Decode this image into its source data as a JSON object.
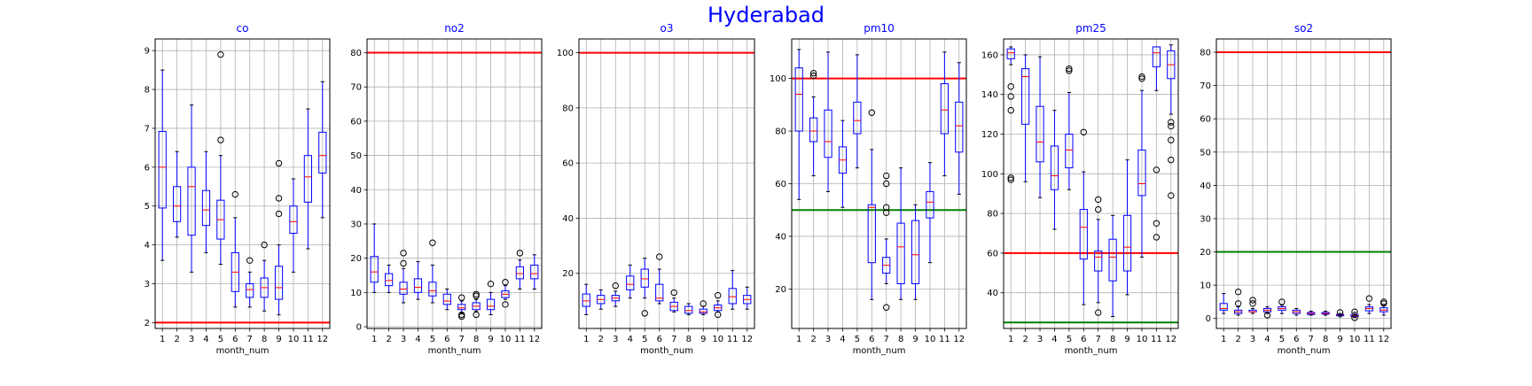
{
  "title": "Hyderabad",
  "title_color": "#0000ff",
  "colors": {
    "box": "#0000ff",
    "whisker": "#0000ff",
    "median": "#ff0000",
    "flier": "#000000",
    "grid": "#b0b0b0",
    "line_red": "#ff0000",
    "line_green": "#008000",
    "subtitle": "#0000ff"
  },
  "chart_data": [
    {
      "type": "box",
      "title": "co",
      "xlabel": "month_num",
      "ylabel": "",
      "grid": true,
      "categories": [
        "1",
        "2",
        "3",
        "4",
        "5",
        "6",
        "7",
        "8",
        "9",
        "10",
        "11",
        "12"
      ],
      "ylim": [
        1.85,
        9.3
      ],
      "yticks": [
        2,
        3,
        4,
        5,
        6,
        7,
        8,
        9
      ],
      "hlines": [
        {
          "y": 2.0,
          "color": "red"
        }
      ],
      "boxes": [
        {
          "month": "1",
          "whislo": 3.6,
          "q1": 4.95,
          "med": 6.0,
          "q3": 6.92,
          "whishi": 8.5,
          "fliers": []
        },
        {
          "month": "2",
          "whislo": 4.2,
          "q1": 4.6,
          "med": 5.0,
          "q3": 5.5,
          "whishi": 6.4,
          "fliers": []
        },
        {
          "month": "3",
          "whislo": 3.3,
          "q1": 4.25,
          "med": 5.5,
          "q3": 6.0,
          "whishi": 7.6,
          "fliers": []
        },
        {
          "month": "4",
          "whislo": 3.8,
          "q1": 4.5,
          "med": 4.9,
          "q3": 5.4,
          "whishi": 6.4,
          "fliers": []
        },
        {
          "month": "5",
          "whislo": 3.5,
          "q1": 4.15,
          "med": 4.65,
          "q3": 5.15,
          "whishi": 6.3,
          "fliers": [
            6.7,
            8.9
          ]
        },
        {
          "month": "6",
          "whislo": 2.4,
          "q1": 2.8,
          "med": 3.3,
          "q3": 3.8,
          "whishi": 4.7,
          "fliers": [
            5.3
          ]
        },
        {
          "month": "7",
          "whislo": 2.4,
          "q1": 2.65,
          "med": 2.85,
          "q3": 3.0,
          "whishi": 3.3,
          "fliers": [
            3.6
          ]
        },
        {
          "month": "8",
          "whislo": 2.3,
          "q1": 2.65,
          "med": 2.9,
          "q3": 3.15,
          "whishi": 3.6,
          "fliers": [
            4.0
          ]
        },
        {
          "month": "9",
          "whislo": 2.2,
          "q1": 2.6,
          "med": 2.9,
          "q3": 3.45,
          "whishi": 4.0,
          "fliers": [
            4.8,
            5.2,
            6.1
          ]
        },
        {
          "month": "10",
          "whislo": 3.3,
          "q1": 4.3,
          "med": 4.6,
          "q3": 5.0,
          "whishi": 5.7,
          "fliers": []
        },
        {
          "month": "11",
          "whislo": 3.9,
          "q1": 5.1,
          "med": 5.75,
          "q3": 6.3,
          "whishi": 7.5,
          "fliers": []
        },
        {
          "month": "12",
          "whislo": 4.7,
          "q1": 5.85,
          "med": 6.3,
          "q3": 6.9,
          "whishi": 8.2,
          "fliers": []
        }
      ]
    },
    {
      "type": "box",
      "title": "no2",
      "xlabel": "month_num",
      "ylabel": "",
      "grid": true,
      "categories": [
        "1",
        "2",
        "3",
        "4",
        "5",
        "6",
        "7",
        "8",
        "9",
        "10",
        "11",
        "12"
      ],
      "ylim": [
        -0.5,
        84
      ],
      "yticks": [
        0,
        10,
        20,
        30,
        40,
        50,
        60,
        70,
        80
      ],
      "hlines": [
        {
          "y": 80,
          "color": "red"
        }
      ],
      "boxes": [
        {
          "month": "1",
          "whislo": 10,
          "q1": 13,
          "med": 16,
          "q3": 20.5,
          "whishi": 30,
          "fliers": []
        },
        {
          "month": "2",
          "whislo": 10,
          "q1": 12,
          "med": 13.5,
          "q3": 15.5,
          "whishi": 18,
          "fliers": []
        },
        {
          "month": "3",
          "whislo": 7,
          "q1": 9.5,
          "med": 11,
          "q3": 13,
          "whishi": 17,
          "fliers": [
            18.5,
            21.5
          ]
        },
        {
          "month": "4",
          "whislo": 8,
          "q1": 10,
          "med": 11.5,
          "q3": 14,
          "whishi": 19,
          "fliers": []
        },
        {
          "month": "5",
          "whislo": 7,
          "q1": 9,
          "med": 10.5,
          "q3": 13,
          "whishi": 18,
          "fliers": [
            24.5
          ]
        },
        {
          "month": "6",
          "whislo": 5,
          "q1": 6.5,
          "med": 7.5,
          "q3": 9.5,
          "whishi": 11,
          "fliers": []
        },
        {
          "month": "7",
          "whislo": 4,
          "q1": 5,
          "med": 5.5,
          "q3": 6.5,
          "whishi": 7.5,
          "fliers": [
            3,
            3.5,
            8.5
          ]
        },
        {
          "month": "8",
          "whislo": 4.5,
          "q1": 5,
          "med": 6,
          "q3": 7,
          "whishi": 8,
          "fliers": [
            3.5,
            9,
            9.5
          ]
        },
        {
          "month": "9",
          "whislo": 3.5,
          "q1": 5,
          "med": 6,
          "q3": 8,
          "whishi": 10,
          "fliers": [
            12.5
          ]
        },
        {
          "month": "10",
          "whislo": 8,
          "q1": 8.5,
          "med": 9.5,
          "q3": 10.5,
          "whishi": 12,
          "fliers": [
            6.5,
            13
          ]
        },
        {
          "month": "11",
          "whislo": 11,
          "q1": 14,
          "med": 15.5,
          "q3": 17.5,
          "whishi": 19.5,
          "fliers": [
            21.5
          ]
        },
        {
          "month": "12",
          "whislo": 11,
          "q1": 14,
          "med": 15.5,
          "q3": 18,
          "whishi": 21,
          "fliers": []
        }
      ]
    },
    {
      "type": "box",
      "title": "o3",
      "xlabel": "month_num",
      "ylabel": "",
      "grid": true,
      "categories": [
        "1",
        "2",
        "3",
        "4",
        "5",
        "6",
        "7",
        "8",
        "9",
        "10",
        "11",
        "12"
      ],
      "ylim": [
        0,
        105
      ],
      "yticks": [
        20,
        40,
        60,
        80,
        100
      ],
      "hlines": [
        {
          "y": 100,
          "color": "red"
        }
      ],
      "boxes": [
        {
          "month": "1",
          "whislo": 5,
          "q1": 8,
          "med": 10,
          "q3": 12.5,
          "whishi": 16,
          "fliers": []
        },
        {
          "month": "2",
          "whislo": 7,
          "q1": 9,
          "med": 10.5,
          "q3": 12,
          "whishi": 14,
          "fliers": []
        },
        {
          "month": "3",
          "whislo": 8,
          "q1": 10,
          "med": 11,
          "q3": 12,
          "whishi": 13.5,
          "fliers": [
            15.5
          ]
        },
        {
          "month": "4",
          "whislo": 11,
          "q1": 14,
          "med": 16,
          "q3": 19,
          "whishi": 23,
          "fliers": []
        },
        {
          "month": "5",
          "whislo": 11,
          "q1": 15,
          "med": 18,
          "q3": 21.5,
          "whishi": 25.5,
          "fliers": [
            5.5
          ]
        },
        {
          "month": "6",
          "whislo": 9,
          "q1": 10,
          "med": 11,
          "q3": 16,
          "whishi": 21.5,
          "fliers": [
            26
          ]
        },
        {
          "month": "7",
          "whislo": 6,
          "q1": 6.5,
          "med": 8,
          "q3": 9.5,
          "whishi": 11,
          "fliers": [
            13
          ]
        },
        {
          "month": "8",
          "whislo": 5,
          "q1": 5.5,
          "med": 6.5,
          "q3": 8,
          "whishi": 9,
          "fliers": []
        },
        {
          "month": "9",
          "whislo": 5,
          "q1": 5.5,
          "med": 6,
          "q3": 7,
          "whishi": 8,
          "fliers": [
            9
          ]
        },
        {
          "month": "10",
          "whislo": 6,
          "q1": 6.5,
          "med": 7.5,
          "q3": 8.5,
          "whishi": 10,
          "fliers": [
            5,
            12
          ]
        },
        {
          "month": "11",
          "whislo": 7,
          "q1": 9,
          "med": 11.5,
          "q3": 14.5,
          "whishi": 21,
          "fliers": []
        },
        {
          "month": "12",
          "whislo": 7,
          "q1": 9,
          "med": 10.5,
          "q3": 12,
          "whishi": 15,
          "fliers": []
        }
      ]
    },
    {
      "type": "box",
      "title": "pm10",
      "xlabel": "month_num",
      "ylabel": "",
      "grid": true,
      "categories": [
        "1",
        "2",
        "3",
        "4",
        "5",
        "6",
        "7",
        "8",
        "9",
        "10",
        "11",
        "12"
      ],
      "ylim": [
        5,
        115
      ],
      "yticks": [
        20,
        40,
        60,
        80,
        100
      ],
      "hlines": [
        {
          "y": 100,
          "color": "red"
        },
        {
          "y": 50,
          "color": "green"
        }
      ],
      "boxes": [
        {
          "month": "1",
          "whislo": 54,
          "q1": 80,
          "med": 94,
          "q3": 104,
          "whishi": 111,
          "fliers": []
        },
        {
          "month": "2",
          "whislo": 63,
          "q1": 76,
          "med": 80,
          "q3": 85,
          "whishi": 93,
          "fliers": [
            101,
            102
          ]
        },
        {
          "month": "3",
          "whislo": 57,
          "q1": 70,
          "med": 76,
          "q3": 88,
          "whishi": 110,
          "fliers": []
        },
        {
          "month": "4",
          "whislo": 51,
          "q1": 64,
          "med": 69,
          "q3": 74,
          "whishi": 84,
          "fliers": []
        },
        {
          "month": "5",
          "whislo": 66,
          "q1": 79,
          "med": 84,
          "q3": 91,
          "whishi": 109,
          "fliers": []
        },
        {
          "month": "6",
          "whislo": 16,
          "q1": 30,
          "med": 51,
          "q3": 52,
          "whishi": 73,
          "fliers": [
            87
          ]
        },
        {
          "month": "7",
          "whislo": 22,
          "q1": 26,
          "med": 29,
          "q3": 32,
          "whishi": 39,
          "fliers": [
            13,
            49,
            51,
            60,
            63
          ]
        },
        {
          "month": "8",
          "whislo": 16,
          "q1": 22,
          "med": 36,
          "q3": 45,
          "whishi": 66,
          "fliers": []
        },
        {
          "month": "9",
          "whislo": 16,
          "q1": 22,
          "med": 33,
          "q3": 46,
          "whishi": 52,
          "fliers": []
        },
        {
          "month": "10",
          "whislo": 30,
          "q1": 47,
          "med": 53,
          "q3": 57,
          "whishi": 68,
          "fliers": []
        },
        {
          "month": "11",
          "whislo": 63,
          "q1": 79,
          "med": 88,
          "q3": 98,
          "whishi": 110,
          "fliers": []
        },
        {
          "month": "12",
          "whislo": 56,
          "q1": 72,
          "med": 82,
          "q3": 91,
          "whishi": 106,
          "fliers": []
        }
      ]
    },
    {
      "type": "box",
      "title": "pm25",
      "xlabel": "month_num",
      "ylabel": "",
      "grid": true,
      "categories": [
        "1",
        "2",
        "3",
        "4",
        "5",
        "6",
        "7",
        "8",
        "9",
        "10",
        "11",
        "12"
      ],
      "ylim": [
        22,
        168
      ],
      "yticks": [
        40,
        60,
        80,
        100,
        120,
        140,
        160
      ],
      "hlines": [
        {
          "y": 60,
          "color": "red"
        },
        {
          "y": 25,
          "color": "green"
        }
      ],
      "boxes": [
        {
          "month": "1",
          "whislo": 155,
          "q1": 158,
          "med": 161,
          "q3": 163,
          "whishi": 164,
          "fliers": [
            98,
            97,
            132,
            139,
            144
          ]
        },
        {
          "month": "2",
          "whislo": 96,
          "q1": 125,
          "med": 149,
          "q3": 153,
          "whishi": 160,
          "fliers": []
        },
        {
          "month": "3",
          "whislo": 88,
          "q1": 106,
          "med": 116,
          "q3": 134,
          "whishi": 159,
          "fliers": []
        },
        {
          "month": "4",
          "whislo": 72,
          "q1": 92,
          "med": 99,
          "q3": 114,
          "whishi": 132,
          "fliers": []
        },
        {
          "month": "5",
          "whislo": 92,
          "q1": 103,
          "med": 112,
          "q3": 120,
          "whishi": 141,
          "fliers": [
            152,
            153
          ]
        },
        {
          "month": "6",
          "whislo": 34,
          "q1": 57,
          "med": 73,
          "q3": 82,
          "whishi": 101,
          "fliers": [
            121
          ]
        },
        {
          "month": "7",
          "whislo": 35,
          "q1": 51,
          "med": 58,
          "q3": 61,
          "whishi": 77,
          "fliers": [
            30,
            82,
            87
          ]
        },
        {
          "month": "8",
          "whislo": 28,
          "q1": 46,
          "med": 58,
          "q3": 67,
          "whishi": 79,
          "fliers": []
        },
        {
          "month": "9",
          "whislo": 39,
          "q1": 51,
          "med": 63,
          "q3": 79,
          "whishi": 107,
          "fliers": []
        },
        {
          "month": "10",
          "whislo": 58,
          "q1": 89,
          "med": 95,
          "q3": 112,
          "whishi": 142,
          "fliers": [
            148,
            149
          ]
        },
        {
          "month": "11",
          "whislo": 142,
          "q1": 154,
          "med": 161,
          "q3": 164,
          "whishi": 164,
          "fliers": [
            68,
            75,
            102
          ]
        },
        {
          "month": "12",
          "whislo": 130,
          "q1": 148,
          "med": 155,
          "q3": 162,
          "whishi": 165,
          "fliers": [
            89,
            107,
            117,
            124,
            126
          ]
        }
      ]
    },
    {
      "type": "box",
      "title": "so2",
      "xlabel": "month_num",
      "ylabel": "",
      "grid": true,
      "categories": [
        "1",
        "2",
        "3",
        "4",
        "5",
        "6",
        "7",
        "8",
        "9",
        "10",
        "11",
        "12"
      ],
      "ylim": [
        -3,
        84
      ],
      "yticks": [
        0,
        10,
        20,
        30,
        40,
        50,
        60,
        70,
        80
      ],
      "hlines": [
        {
          "y": 80,
          "color": "red"
        },
        {
          "y": 20,
          "color": "green"
        }
      ],
      "boxes": [
        {
          "month": "1",
          "whislo": 1.5,
          "q1": 2.5,
          "med": 3,
          "q3": 4.5,
          "whishi": 7.5,
          "fliers": []
        },
        {
          "month": "2",
          "whislo": 1,
          "q1": 1.5,
          "med": 2,
          "q3": 2.5,
          "whishi": 3.5,
          "fliers": [
            4.5,
            8
          ]
        },
        {
          "month": "3",
          "whislo": 1.5,
          "q1": 2,
          "med": 2,
          "q3": 2.5,
          "whishi": 3,
          "fliers": [
            4.5,
            5.5
          ]
        },
        {
          "month": "4",
          "whislo": 1.5,
          "q1": 2,
          "med": 2.5,
          "q3": 3,
          "whishi": 3.5,
          "fliers": [
            1
          ]
        },
        {
          "month": "5",
          "whislo": 1.5,
          "q1": 2.5,
          "med": 3,
          "q3": 3.5,
          "whishi": 4,
          "fliers": [
            5
          ]
        },
        {
          "month": "6",
          "whislo": 1,
          "q1": 1.5,
          "med": 2,
          "q3": 2.5,
          "whishi": 3,
          "fliers": []
        },
        {
          "month": "7",
          "whislo": 1,
          "q1": 1.2,
          "med": 1.5,
          "q3": 1.8,
          "whishi": 2.2,
          "fliers": []
        },
        {
          "month": "8",
          "whislo": 1,
          "q1": 1.3,
          "med": 1.5,
          "q3": 1.8,
          "whishi": 2.2,
          "fliers": []
        },
        {
          "month": "9",
          "whislo": 0.5,
          "q1": 0.8,
          "med": 1,
          "q3": 1.2,
          "whishi": 1.5,
          "fliers": [
            1.8
          ]
        },
        {
          "month": "10",
          "whislo": 0.3,
          "q1": 0.6,
          "med": 0.8,
          "q3": 1.2,
          "whishi": 1.8,
          "fliers": [
            0.2,
            2
          ]
        },
        {
          "month": "11",
          "whislo": 1.5,
          "q1": 2.3,
          "med": 3,
          "q3": 3.5,
          "whishi": 4.2,
          "fliers": [
            6
          ]
        },
        {
          "month": "12",
          "whislo": 1,
          "q1": 2,
          "med": 2.5,
          "q3": 3.2,
          "whishi": 4,
          "fliers": [
            4.5,
            5
          ]
        }
      ]
    }
  ]
}
